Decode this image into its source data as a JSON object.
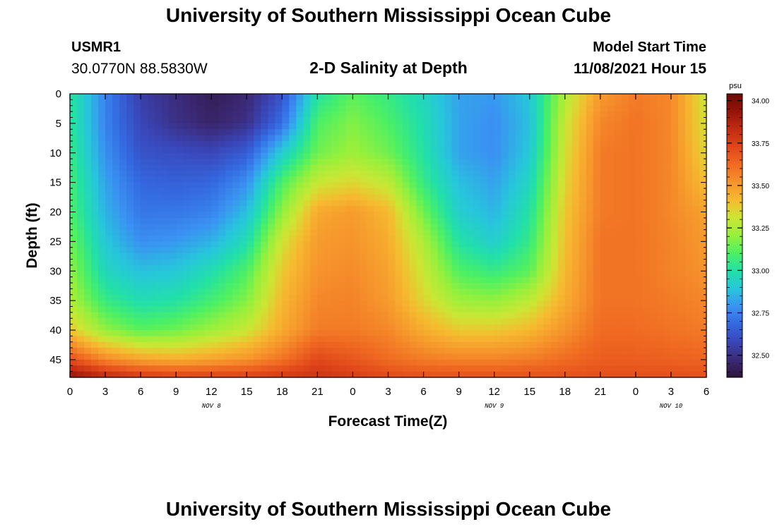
{
  "header": {
    "title": "University of Southern Mississippi Ocean Cube",
    "station": "USMR1",
    "coords": "30.0770N  88.5830W",
    "subtitle": "2-D Salinity at Depth",
    "model_label": "Model Start Time",
    "model_time": "11/08/2021 Hour 15"
  },
  "footer": {
    "title": "University of Southern Mississippi Ocean Cube"
  },
  "chart_data": {
    "type": "heatmap",
    "title": "2-D Salinity at Depth",
    "xlabel": "Forecast Time(Z)",
    "ylabel": "Depth (ft)",
    "x_tick_labels": [
      "0",
      "3",
      "6",
      "9",
      "12",
      "15",
      "18",
      "21",
      "0",
      "3",
      "6",
      "9",
      "12",
      "15",
      "18",
      "21",
      "0",
      "3",
      "6"
    ],
    "x_range_hours": [
      0,
      54
    ],
    "y_ticks": [
      0,
      5,
      10,
      15,
      20,
      25,
      30,
      35,
      40,
      45
    ],
    "y_range": [
      0,
      48
    ],
    "y_reversed": true,
    "date_labels": [
      {
        "text": "NOV 8",
        "hour": 12
      },
      {
        "text": "NOV 9",
        "hour": 36
      },
      {
        "text": "NOV 10",
        "hour": 51
      }
    ],
    "colorbar": {
      "unit": "psu",
      "min": 32.37,
      "max": 34.04,
      "ticks": [
        "32.50",
        "32.75",
        "33.00",
        "33.25",
        "33.50",
        "33.75",
        "34.00"
      ],
      "colors": [
        "#2e1438",
        "#3b2a78",
        "#3a46b8",
        "#3468e0",
        "#3a92f2",
        "#27c6dc",
        "#22e0a8",
        "#4cf064",
        "#96f03c",
        "#cce634",
        "#f6ba30",
        "#f6942c",
        "#f06a22",
        "#e0461a",
        "#c02c12",
        "#961408",
        "#6a0a04"
      ]
    },
    "grid": false,
    "values_grid": {
      "hours": [
        0,
        3,
        6,
        9,
        12,
        15,
        18,
        21,
        24,
        27,
        30,
        33,
        36,
        39,
        42,
        45,
        48,
        51,
        54
      ],
      "depths": [
        0,
        5,
        10,
        15,
        20,
        25,
        30,
        35,
        40,
        45,
        48
      ],
      "values": [
        [
          33.02,
          32.75,
          32.55,
          32.48,
          32.42,
          32.46,
          32.62,
          33.0,
          33.12,
          33.05,
          32.95,
          32.82,
          32.8,
          32.9,
          33.25,
          33.5,
          33.58,
          33.55,
          33.3
        ],
        [
          33.03,
          32.75,
          32.58,
          32.5,
          32.45,
          32.5,
          32.7,
          33.1,
          33.18,
          33.1,
          32.98,
          32.82,
          32.78,
          32.88,
          33.3,
          33.55,
          33.6,
          33.55,
          33.32
        ],
        [
          33.05,
          32.78,
          32.62,
          32.6,
          32.58,
          32.65,
          32.92,
          33.15,
          33.22,
          33.15,
          33.0,
          32.82,
          32.78,
          32.9,
          33.32,
          33.58,
          33.6,
          33.55,
          33.35
        ],
        [
          33.08,
          32.82,
          32.68,
          32.66,
          32.68,
          32.78,
          33.1,
          33.3,
          33.35,
          33.28,
          33.05,
          32.88,
          32.82,
          32.95,
          33.35,
          33.58,
          33.6,
          33.55,
          33.4
        ],
        [
          33.1,
          32.85,
          32.72,
          32.72,
          32.75,
          32.88,
          33.2,
          33.46,
          33.5,
          33.42,
          33.15,
          32.92,
          32.86,
          33.0,
          33.38,
          33.58,
          33.6,
          33.55,
          33.48
        ],
        [
          33.15,
          32.9,
          32.78,
          32.8,
          32.85,
          32.98,
          33.32,
          33.5,
          33.52,
          33.45,
          33.25,
          33.0,
          32.92,
          33.05,
          33.4,
          33.6,
          33.6,
          33.56,
          33.5
        ],
        [
          33.2,
          32.95,
          32.88,
          32.9,
          32.98,
          33.1,
          33.38,
          33.52,
          33.54,
          33.48,
          33.3,
          33.1,
          33.05,
          33.12,
          33.42,
          33.6,
          33.6,
          33.56,
          33.52
        ],
        [
          33.25,
          33.05,
          32.98,
          33.0,
          33.08,
          33.18,
          33.42,
          33.55,
          33.56,
          33.5,
          33.35,
          33.22,
          33.2,
          33.28,
          33.45,
          33.6,
          33.6,
          33.58,
          33.55
        ],
        [
          33.38,
          33.2,
          33.12,
          33.15,
          33.22,
          33.3,
          33.46,
          33.58,
          33.58,
          33.55,
          33.45,
          33.38,
          33.38,
          33.42,
          33.52,
          33.62,
          33.62,
          33.6,
          33.58
        ],
        [
          33.7,
          33.55,
          33.48,
          33.45,
          33.48,
          33.52,
          33.6,
          33.72,
          33.68,
          33.62,
          33.58,
          33.56,
          33.56,
          33.58,
          33.62,
          33.66,
          33.66,
          33.65,
          33.64
        ],
        [
          33.95,
          33.85,
          33.78,
          33.75,
          33.75,
          33.75,
          33.78,
          33.8,
          33.76,
          33.72,
          33.7,
          33.7,
          33.7,
          33.7,
          33.7,
          33.7,
          33.7,
          33.7,
          33.7
        ]
      ]
    }
  }
}
